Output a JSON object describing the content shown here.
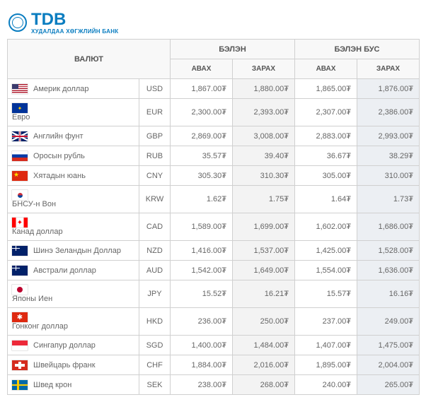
{
  "logo": {
    "text": "TDB",
    "subtitle": "ХУДАЛДАА ХӨГЖЛИЙН БАНК"
  },
  "headers": {
    "currency": "ВАЛЮТ",
    "cash": "БЭЛЭН",
    "noncash": "БЭЛЭН БУС",
    "buy": "АВАХ",
    "sell": "ЗАРАХ"
  },
  "rows": [
    {
      "name": "Америк доллар",
      "code": "USD",
      "flag": "usd",
      "cash_buy": "1,867.00₮",
      "cash_sell": "1,880.00₮",
      "nc_buy": "1,865.00₮",
      "nc_sell": "1,876.00₮"
    },
    {
      "name": "Евро",
      "code": "EUR",
      "flag": "eur",
      "cash_buy": "2,300.00₮",
      "cash_sell": "2,393.00₮",
      "nc_buy": "2,307.00₮",
      "nc_sell": "2,386.00₮"
    },
    {
      "name": "Английн фунт",
      "code": "GBP",
      "flag": "gbp",
      "cash_buy": "2,869.00₮",
      "cash_sell": "3,008.00₮",
      "nc_buy": "2,883.00₮",
      "nc_sell": "2,993.00₮"
    },
    {
      "name": "Оросын рубль",
      "code": "RUB",
      "flag": "rub",
      "cash_buy": "35.57₮",
      "cash_sell": "39.40₮",
      "nc_buy": "36.67₮",
      "nc_sell": "38.29₮"
    },
    {
      "name": "Хятадын юань",
      "code": "CNY",
      "flag": "cny",
      "cash_buy": "305.30₮",
      "cash_sell": "310.30₮",
      "nc_buy": "305.00₮",
      "nc_sell": "310.00₮"
    },
    {
      "name": "БНСУ-н Вон",
      "code": "KRW",
      "flag": "krw",
      "cash_buy": "1.62₮",
      "cash_sell": "1.75₮",
      "nc_buy": "1.64₮",
      "nc_sell": "1.73₮"
    },
    {
      "name": "Канад доллар",
      "code": "CAD",
      "flag": "cad",
      "cash_buy": "1,589.00₮",
      "cash_sell": "1,699.00₮",
      "nc_buy": "1,602.00₮",
      "nc_sell": "1,686.00₮"
    },
    {
      "name": "Шинэ Зеландын Доллар",
      "code": "NZD",
      "flag": "nzd",
      "cash_buy": "1,416.00₮",
      "cash_sell": "1,537.00₮",
      "nc_buy": "1,425.00₮",
      "nc_sell": "1,528.00₮"
    },
    {
      "name": "Австрали доллар",
      "code": "AUD",
      "flag": "aud",
      "cash_buy": "1,542.00₮",
      "cash_sell": "1,649.00₮",
      "nc_buy": "1,554.00₮",
      "nc_sell": "1,636.00₮"
    },
    {
      "name": "Японы Иен",
      "code": "JPY",
      "flag": "jpy",
      "cash_buy": "15.52₮",
      "cash_sell": "16.21₮",
      "nc_buy": "15.57₮",
      "nc_sell": "16.16₮"
    },
    {
      "name": "Гонконг доллар",
      "code": "HKD",
      "flag": "hkd",
      "cash_buy": "236.00₮",
      "cash_sell": "250.00₮",
      "nc_buy": "237.00₮",
      "nc_sell": "249.00₮"
    },
    {
      "name": "Сингапур доллар",
      "code": "SGD",
      "flag": "sgd",
      "cash_buy": "1,400.00₮",
      "cash_sell": "1,484.00₮",
      "nc_buy": "1,407.00₮",
      "nc_sell": "1,475.00₮"
    },
    {
      "name": "Швейцарь франк",
      "code": "CHF",
      "flag": "chf",
      "cash_buy": "1,884.00₮",
      "cash_sell": "2,016.00₮",
      "nc_buy": "1,895.00₮",
      "nc_sell": "2,004.00₮"
    },
    {
      "name": "Швед крон",
      "code": "SEK",
      "flag": "sek",
      "cash_buy": "238.00₮",
      "cash_sell": "268.00₮",
      "nc_buy": "240.00₮",
      "nc_sell": "265.00₮"
    }
  ]
}
